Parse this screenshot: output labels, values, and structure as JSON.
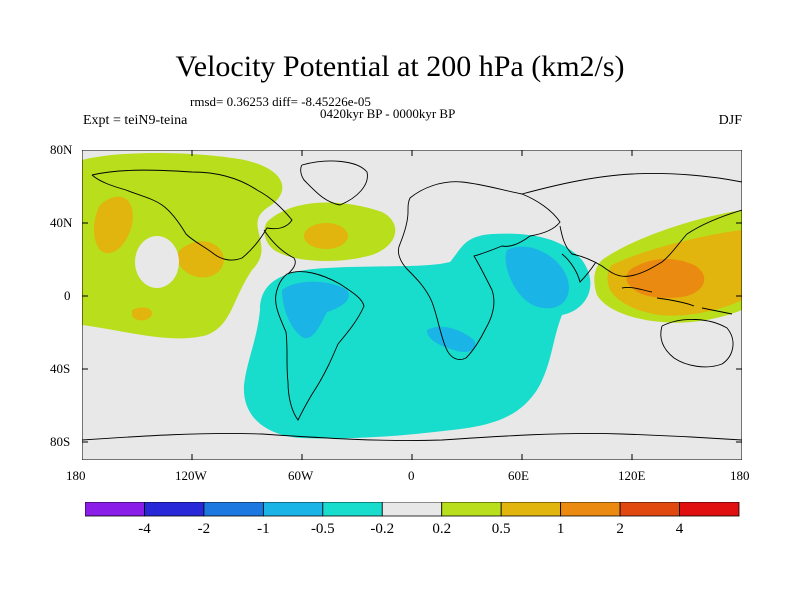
{
  "title": "Velocity Potential at 200 hPa (km2/s)",
  "stats_line": "rmsd= 0.36253  diff= -8.45226e-05",
  "period": "0420kyr BP - 0000kyr BP",
  "experiment": "Expt = teiN9-teina",
  "season": "DJF",
  "lon_ticks": [
    "180",
    "120W",
    "60W",
    "0",
    "60E",
    "120E",
    "180"
  ],
  "lat_ticks": [
    "80N",
    "40N",
    "0",
    "40S",
    "80S"
  ],
  "colorbar": {
    "colors": [
      "#8a1ee8",
      "#2828d8",
      "#1a78e0",
      "#1ab4e6",
      "#18dccc",
      "#e8e8e8",
      "#b8de1c",
      "#e2b40e",
      "#ea8a10",
      "#e04810",
      "#e01010"
    ],
    "labels": [
      "-4",
      "-2",
      "-1",
      "-0.5",
      "-0.2",
      "0.2",
      "0.5",
      "1",
      "2",
      "4"
    ]
  },
  "colors": {
    "background": "#e8e8e8",
    "land_outline": "#000000"
  }
}
